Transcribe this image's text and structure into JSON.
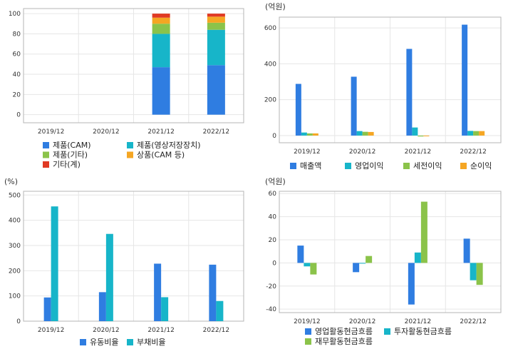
{
  "colors": {
    "blue": "#2f7de1",
    "cyan": "#17b5c9",
    "green": "#8bc34a",
    "orange": "#f5a623",
    "red": "#e03a24",
    "grid": "#e6e6e6",
    "frame": "#b5b5b5"
  },
  "chart_data": [
    {
      "id": "composition",
      "type": "bar",
      "stacked": true,
      "unit_label": "",
      "categories": [
        "2019/12",
        "2020/12",
        "2021/12",
        "2022/12"
      ],
      "ylim": [
        -8,
        105
      ],
      "yticks": [
        0,
        20,
        40,
        60,
        80,
        100
      ],
      "grid": true,
      "legend_position": "bottom",
      "series": [
        {
          "name": "제품(CAM)",
          "color": "blue",
          "values": [
            null,
            null,
            47,
            49
          ]
        },
        {
          "name": "제품(영상저장장치)",
          "color": "cyan",
          "values": [
            null,
            null,
            33,
            35
          ]
        },
        {
          "name": "제품(기타)",
          "color": "green",
          "values": [
            null,
            null,
            10,
            7
          ]
        },
        {
          "name": "상품(CAM 등)",
          "color": "orange",
          "values": [
            null,
            null,
            6,
            6
          ]
        },
        {
          "name": "기타(계)",
          "color": "red",
          "values": [
            null,
            null,
            4,
            3
          ]
        }
      ]
    },
    {
      "id": "income",
      "type": "bar",
      "unit_label": "(억원)",
      "categories": [
        "2019/12",
        "2020/12",
        "2021/12",
        "2022/12"
      ],
      "ylim": [
        -40,
        660
      ],
      "yticks": [
        0,
        200,
        400,
        600
      ],
      "grid": true,
      "legend_position": "bottom",
      "series": [
        {
          "name": "매출액",
          "color": "blue",
          "values": [
            288,
            328,
            483,
            618
          ]
        },
        {
          "name": "영업이익",
          "color": "cyan",
          "values": [
            17,
            25,
            45,
            26
          ]
        },
        {
          "name": "세전이익",
          "color": "green",
          "values": [
            12,
            21,
            -5,
            25
          ]
        },
        {
          "name": "순이익",
          "color": "orange",
          "values": [
            12,
            20,
            0,
            25
          ]
        }
      ]
    },
    {
      "id": "ratios",
      "type": "bar",
      "unit_label": "(%)",
      "categories": [
        "2019/12",
        "2020/12",
        "2021/12",
        "2022/12"
      ],
      "ylim": [
        0,
        515
      ],
      "yticks": [
        0,
        100,
        200,
        300,
        400,
        500
      ],
      "grid": true,
      "legend_position": "bottom",
      "series": [
        {
          "name": "유동비율",
          "color": "blue",
          "values": [
            94,
            115,
            228,
            224
          ]
        },
        {
          "name": "부채비율",
          "color": "cyan",
          "values": [
            455,
            346,
            95,
            80
          ]
        }
      ]
    },
    {
      "id": "cashflow",
      "type": "bar",
      "unit_label": "(억원)",
      "categories": [
        "2019/12",
        "2020/12",
        "2021/12",
        "2022/12"
      ],
      "ylim": [
        -43,
        62
      ],
      "yticks": [
        -40,
        -20,
        0,
        20,
        40,
        60
      ],
      "grid": true,
      "legend_position": "bottom",
      "series": [
        {
          "name": "영업활동현금흐름",
          "color": "blue",
          "values": [
            15,
            -8,
            -36,
            21
          ]
        },
        {
          "name": "투자활동현금흐름",
          "color": "cyan",
          "values": [
            -3,
            0,
            9,
            -15
          ]
        },
        {
          "name": "재무활동현금흐름",
          "color": "green",
          "values": [
            -10,
            6,
            53,
            -19
          ]
        }
      ]
    }
  ]
}
